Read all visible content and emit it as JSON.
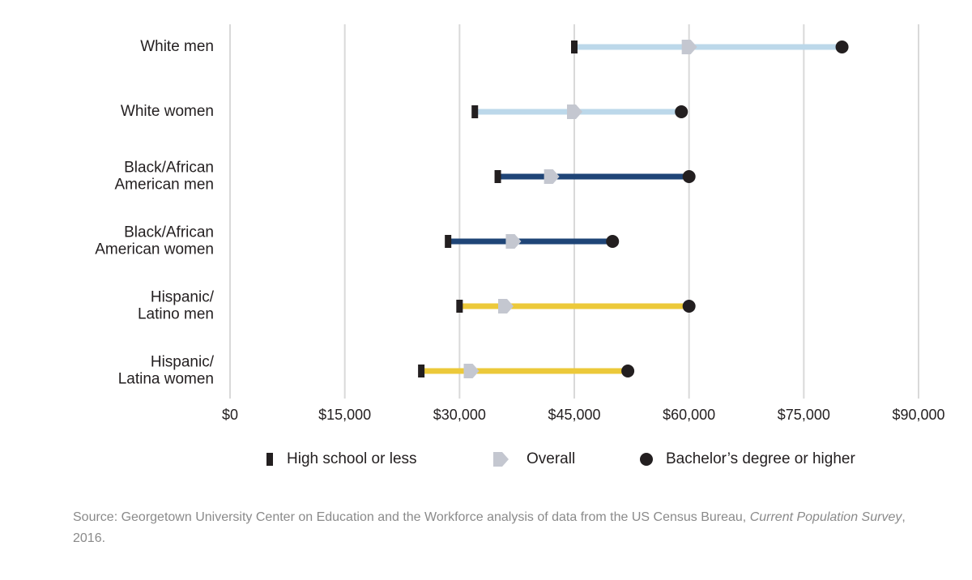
{
  "chart_data": {
    "type": "dumbbell",
    "title": "",
    "xlabel": "",
    "ylabel": "",
    "xlim": [
      0,
      90000
    ],
    "x_ticks": [
      0,
      15000,
      30000,
      45000,
      60000,
      75000,
      90000
    ],
    "x_tick_labels": [
      "$0",
      "$15,000",
      "$30,000",
      "$45,000",
      "$60,000",
      "$75,000",
      "$90,000"
    ],
    "grid": "vertical",
    "legend_position": "bottom",
    "series_names": [
      "High school or less",
      "Overall",
      "Bachelor’s degree or higher"
    ],
    "categories": [
      {
        "label_lines": [
          "White men"
        ],
        "high_school": 45000,
        "overall": 60000,
        "bachelors": 80000,
        "color": "#bcd8ea"
      },
      {
        "label_lines": [
          "White women"
        ],
        "high_school": 32000,
        "overall": 45000,
        "bachelors": 59000,
        "color": "#bcd8ea"
      },
      {
        "label_lines": [
          "Black/African",
          "American men"
        ],
        "high_school": 35000,
        "overall": 42000,
        "bachelors": 60000,
        "color": "#1f4577"
      },
      {
        "label_lines": [
          "Black/African",
          "American women"
        ],
        "high_school": 28500,
        "overall": 37000,
        "bachelors": 50000,
        "color": "#1f4577"
      },
      {
        "label_lines": [
          "Hispanic/",
          "Latino men"
        ],
        "high_school": 30000,
        "overall": 36000,
        "bachelors": 60000,
        "color": "#ecc93a"
      },
      {
        "label_lines": [
          "Hispanic/",
          "Latina women"
        ],
        "high_school": 25000,
        "overall": 31500,
        "bachelors": 52000,
        "color": "#ecc93a"
      }
    ]
  },
  "colors": {
    "grid": "#d9d9d9",
    "high_school_marker": "#231f20",
    "overall_marker": "#c4c7d0",
    "bachelors_marker": "#231f20"
  },
  "source": {
    "prefix": "Source: Georgetown University Center on Education and the Workforce analysis of data from the US Census Bureau, ",
    "italic": "Current Population Survey",
    "suffix": ", 2016."
  }
}
